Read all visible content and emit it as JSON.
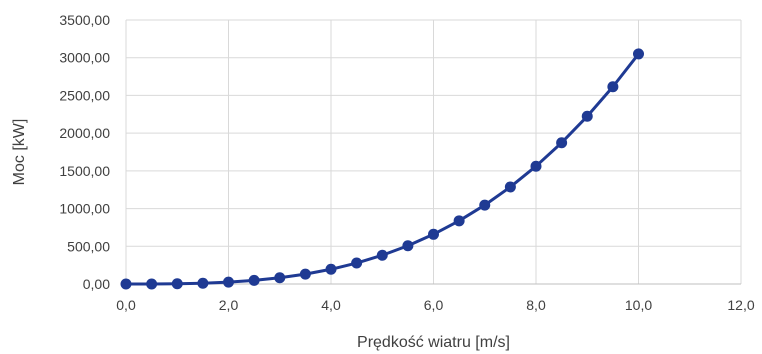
{
  "chart_data": {
    "type": "line",
    "title": "",
    "xlabel": "Prędkość wiatru [m/s]",
    "ylabel": "Moc [kW]",
    "xlim": [
      0,
      12
    ],
    "ylim": [
      0,
      3500
    ],
    "x_ticks": [
      "0,0",
      "2,0",
      "4,0",
      "6,0",
      "8,0",
      "10,0",
      "12,0"
    ],
    "y_ticks": [
      "0,00",
      "500,00",
      "1000,00",
      "1500,00",
      "2000,00",
      "2500,00",
      "3000,00",
      "3500,00"
    ],
    "grid": true,
    "legend": "none",
    "series": [
      {
        "color": "#1f3a93",
        "x": [
          0,
          0.5,
          1,
          1.5,
          2,
          2.5,
          3,
          3.5,
          4,
          4.5,
          5,
          5.5,
          6,
          6.5,
          7,
          7.5,
          8,
          8.5,
          9,
          9.5,
          10
        ],
        "y": [
          0,
          0.38,
          3.05,
          10.3,
          24.4,
          47.7,
          82.3,
          130.8,
          195.2,
          278.0,
          381.3,
          507.5,
          658.9,
          837.7,
          1046.2,
          1286.8,
          1561.7,
          1873.2,
          2223.6,
          2615.2,
          3050.2
        ]
      }
    ]
  }
}
